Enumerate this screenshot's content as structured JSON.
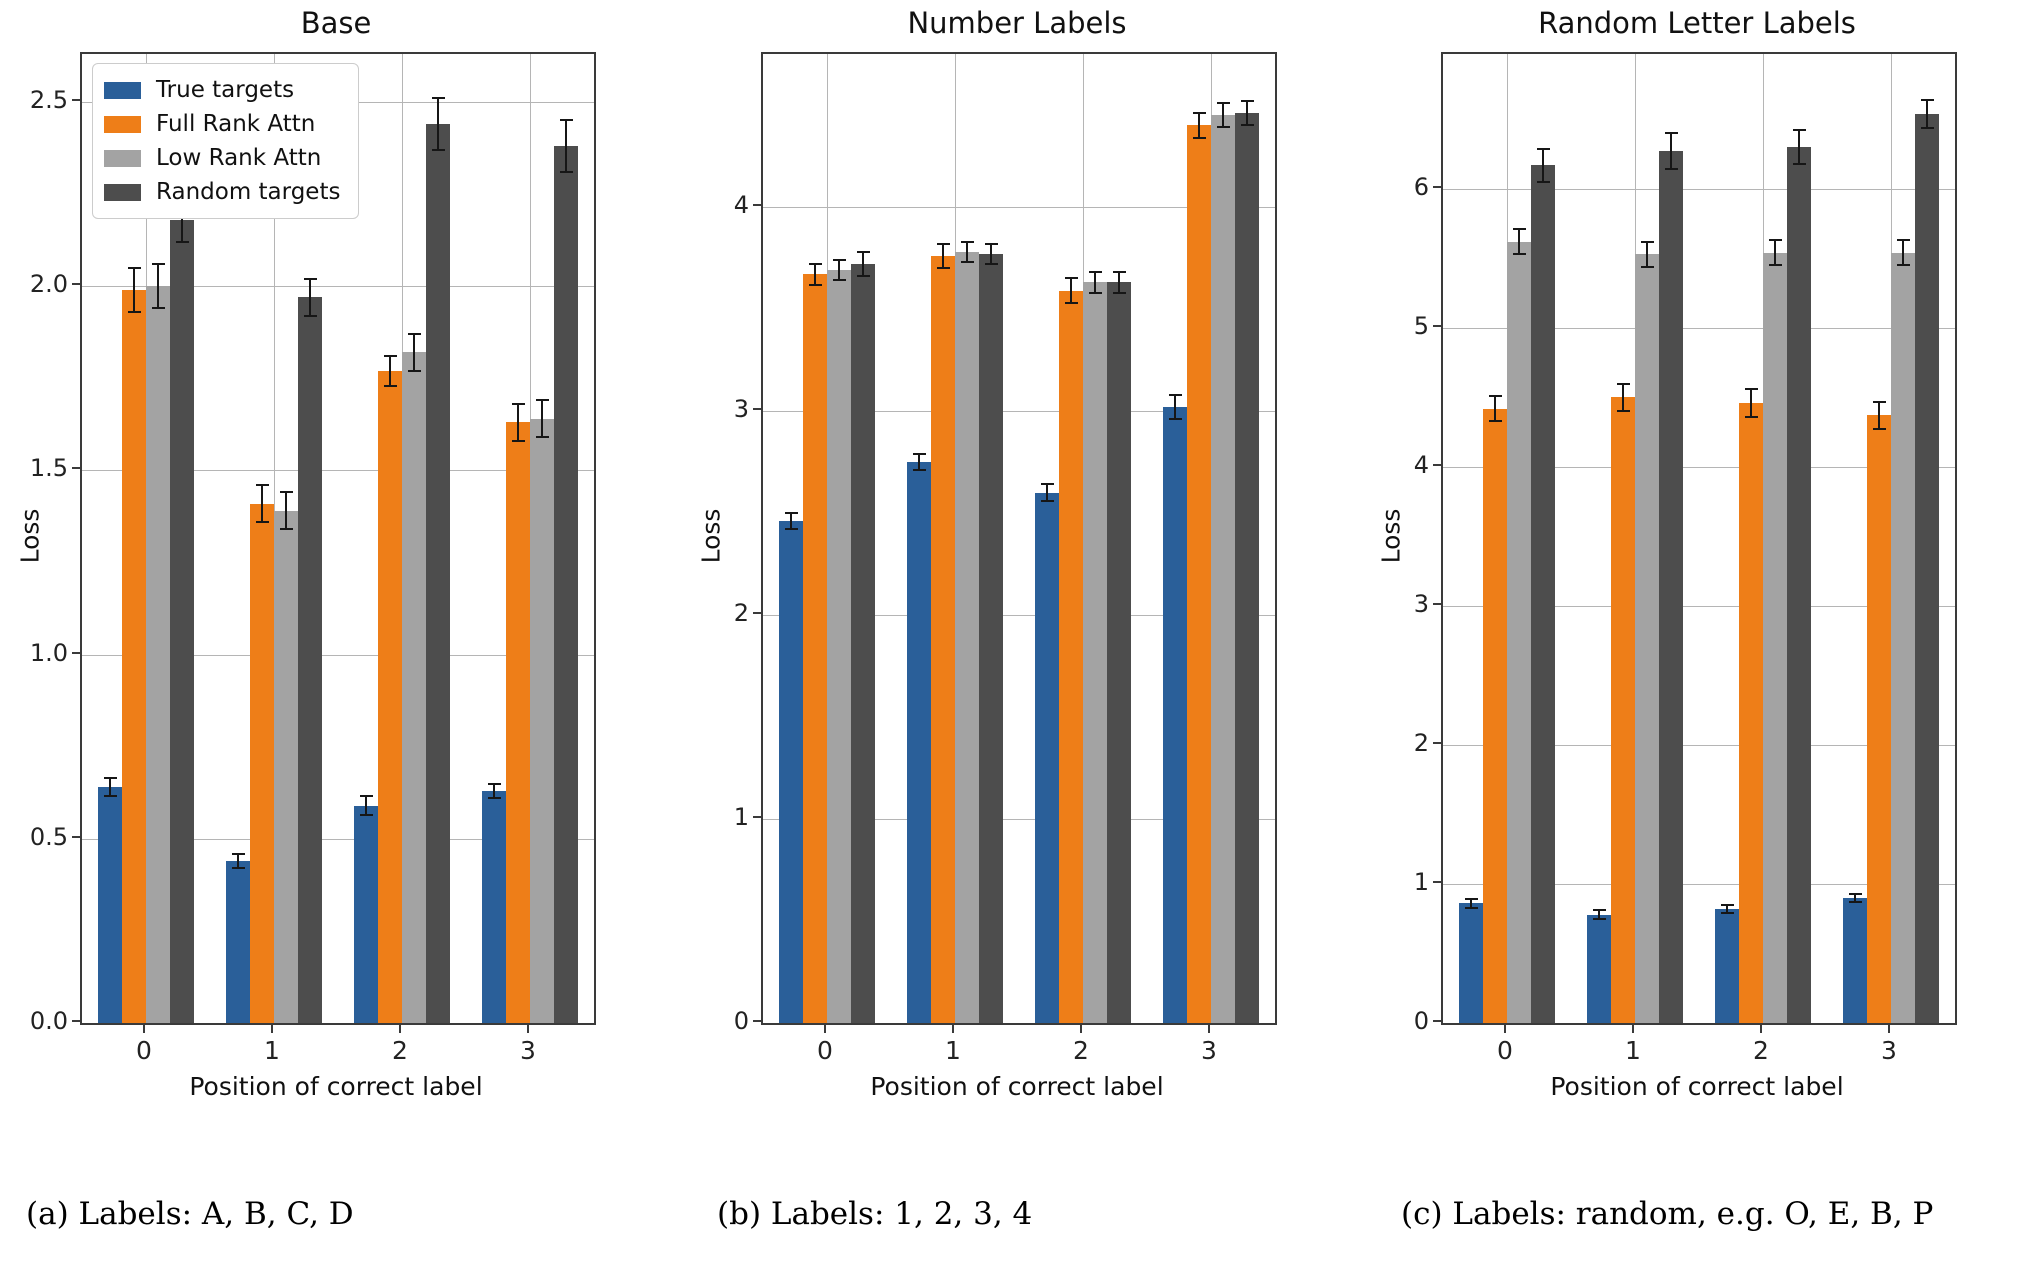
{
  "figure": {
    "captions": [
      "(a) Labels: A, B, C, D",
      "(b) Labels: 1, 2, 3, 4",
      "(c) Labels: random, e.g. O, E, B, P"
    ]
  },
  "colors": {
    "true_targets": "#2a5f99",
    "full_rank_attn": "#ee7e18",
    "low_rank_attn": "#a3a3a3",
    "random_targets": "#4d4d4d",
    "gridline": "#b5b5b5",
    "error_bar": "#161616",
    "axis_frame": "#3a3a3a"
  },
  "legend": {
    "items": [
      {
        "label": "True targets",
        "color": "true_targets"
      },
      {
        "label": "Full Rank Attn",
        "color": "full_rank_attn"
      },
      {
        "label": "Low Rank Attn",
        "color": "low_rank_attn"
      },
      {
        "label": "Random targets",
        "color": "random_targets"
      }
    ]
  },
  "chart_data": [
    {
      "type": "bar",
      "title": "Base",
      "xlabel": "Position of correct label",
      "ylabel": "Loss",
      "categories": [
        "0",
        "1",
        "2",
        "3"
      ],
      "ylim": [
        0,
        2.63
      ],
      "yticks": [
        "0.0",
        "0.5",
        "1.0",
        "1.5",
        "2.0",
        "2.5"
      ],
      "grid": true,
      "legend_visible": true,
      "series": [
        {
          "name": "True targets",
          "color": "true_targets",
          "values": [
            0.64,
            0.44,
            0.59,
            0.63
          ],
          "errors": [
            0.025,
            0.02,
            0.025,
            0.02
          ]
        },
        {
          "name": "Full Rank Attn",
          "color": "full_rank_attn",
          "values": [
            1.99,
            1.41,
            1.77,
            1.63
          ],
          "errors": [
            0.06,
            0.05,
            0.04,
            0.05
          ]
        },
        {
          "name": "Low Rank Attn",
          "color": "low_rank_attn",
          "values": [
            2.0,
            1.39,
            1.82,
            1.64
          ],
          "errors": [
            0.06,
            0.05,
            0.05,
            0.05
          ]
        },
        {
          "name": "Random targets",
          "color": "random_targets",
          "values": [
            2.18,
            1.97,
            2.44,
            2.38
          ],
          "errors": [
            0.06,
            0.05,
            0.07,
            0.07
          ]
        }
      ]
    },
    {
      "type": "bar",
      "title": "Number Labels",
      "xlabel": "Position of correct label",
      "ylabel": "Loss",
      "categories": [
        "0",
        "1",
        "2",
        "3"
      ],
      "ylim": [
        0,
        4.75
      ],
      "yticks": [
        "0",
        "1",
        "2",
        "3",
        "4"
      ],
      "grid": true,
      "legend_visible": false,
      "series": [
        {
          "name": "True targets",
          "color": "true_targets",
          "values": [
            2.46,
            2.75,
            2.6,
            3.02
          ],
          "errors": [
            0.04,
            0.04,
            0.04,
            0.06
          ]
        },
        {
          "name": "Full Rank Attn",
          "color": "full_rank_attn",
          "values": [
            3.67,
            3.76,
            3.59,
            4.4
          ],
          "errors": [
            0.05,
            0.06,
            0.06,
            0.06
          ]
        },
        {
          "name": "Low Rank Attn",
          "color": "low_rank_attn",
          "values": [
            3.69,
            3.78,
            3.63,
            4.45
          ],
          "errors": [
            0.05,
            0.05,
            0.05,
            0.06
          ]
        },
        {
          "name": "Random targets",
          "color": "random_targets",
          "values": [
            3.72,
            3.77,
            3.63,
            4.46
          ],
          "errors": [
            0.06,
            0.05,
            0.05,
            0.06
          ]
        }
      ]
    },
    {
      "type": "bar",
      "title": "Random Letter Labels",
      "xlabel": "Position of correct label",
      "ylabel": "Loss",
      "categories": [
        "0",
        "1",
        "2",
        "3"
      ],
      "ylim": [
        0,
        6.97
      ],
      "yticks": [
        "0",
        "1",
        "2",
        "3",
        "4",
        "5",
        "6"
      ],
      "grid": true,
      "legend_visible": false,
      "series": [
        {
          "name": "True targets",
          "color": "true_targets",
          "values": [
            0.86,
            0.78,
            0.82,
            0.9
          ],
          "errors": [
            0.03,
            0.03,
            0.03,
            0.03
          ]
        },
        {
          "name": "Full Rank Attn",
          "color": "full_rank_attn",
          "values": [
            4.42,
            4.5,
            4.46,
            4.37
          ],
          "errors": [
            0.09,
            0.1,
            0.1,
            0.1
          ]
        },
        {
          "name": "Low Rank Attn",
          "color": "low_rank_attn",
          "values": [
            5.62,
            5.53,
            5.54,
            5.54
          ],
          "errors": [
            0.09,
            0.09,
            0.09,
            0.09
          ]
        },
        {
          "name": "Random targets",
          "color": "random_targets",
          "values": [
            6.17,
            6.27,
            6.3,
            6.54
          ],
          "errors": [
            0.12,
            0.13,
            0.12,
            0.1
          ]
        }
      ]
    }
  ]
}
